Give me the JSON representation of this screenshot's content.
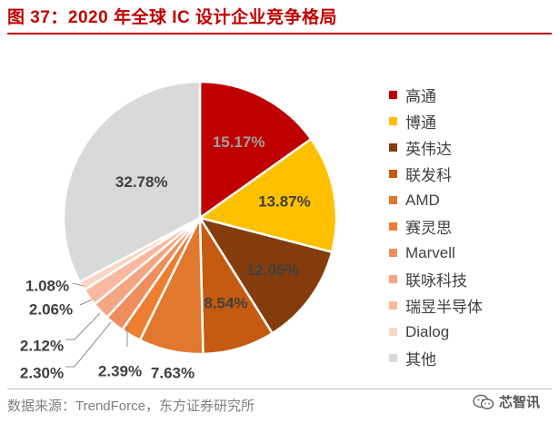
{
  "title": "图 37：2020 年全球 IC 设计企业竞争格局",
  "source": "数据来源：TrendForce，东方证券研究所",
  "watermark": "芯智讯",
  "watermark_icon": "wechat-icon",
  "chart_data": {
    "type": "pie",
    "title": "2020 年全球 IC 设计企业竞争格局",
    "categories": [
      "高通",
      "博通",
      "英伟达",
      "联发科",
      "AMD",
      "赛灵思",
      "Marvell",
      "联咏科技",
      "瑞昱半导体",
      "Dialog",
      "其他"
    ],
    "values": [
      15.17,
      13.87,
      12.05,
      8.54,
      7.63,
      2.39,
      2.3,
      2.12,
      2.06,
      1.08,
      32.78
    ],
    "labels": [
      "15.17%",
      "13.87%",
      "12.05%",
      "8.54%",
      "7.63%",
      "2.39%",
      "2.30%",
      "2.12%",
      "2.06%",
      "1.08%",
      "32.78%"
    ],
    "colors": [
      "#c00000",
      "#ffc000",
      "#843c0c",
      "#c55a11",
      "#e2772e",
      "#ed7d31",
      "#f08d5c",
      "#f4a582",
      "#f8b9a0",
      "#fbd4c3",
      "#d9d9d9"
    ],
    "legend_position": "right"
  }
}
